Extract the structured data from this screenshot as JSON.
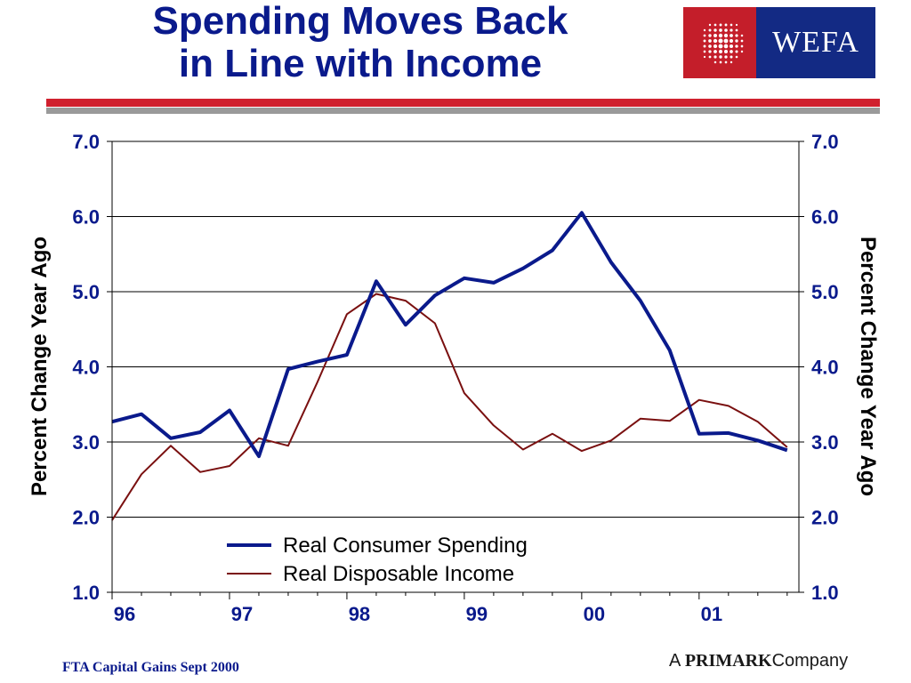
{
  "title": {
    "line1": "Spending Moves Back",
    "line2": "in Line with Income"
  },
  "logo": {
    "text": "WEFA",
    "primary_color": "#c41e2a",
    "secondary_color": "#132a84"
  },
  "footer": {
    "left": "FTA Capital Gains Sept 2000",
    "right_prefix": "A",
    "right_brand": "PRIMARK",
    "right_suffix": "Company"
  },
  "chart_data": {
    "type": "line",
    "title": "",
    "ylabel_left": "Percent Change Year Ago",
    "ylabel_right": "Percent Change Year Ago",
    "ylim": [
      1.0,
      7.0
    ],
    "yticks": [
      "1.0",
      "2.0",
      "3.0",
      "4.0",
      "5.0",
      "6.0",
      "7.0"
    ],
    "xlim": [
      1996.0,
      2001.85
    ],
    "xticks": [
      {
        "label": "96",
        "value": 1996
      },
      {
        "label": "97",
        "value": 1997
      },
      {
        "label": "98",
        "value": 1998
      },
      {
        "label": "99",
        "value": 1999
      },
      {
        "label": "00",
        "value": 2000
      },
      {
        "label": "01",
        "value": 2001
      }
    ],
    "grid": "horizontal",
    "legend": "bottom-center",
    "series": [
      {
        "name": "Real Consumer Spending",
        "color": "#0a1a8c",
        "x": [
          1996.0,
          1996.25,
          1996.5,
          1996.75,
          1997.0,
          1997.25,
          1997.5,
          1997.75,
          1998.0,
          1998.25,
          1998.5,
          1998.75,
          1999.0,
          1999.25,
          1999.5,
          1999.75,
          2000.0,
          2000.25,
          2000.5,
          2000.75,
          2001.0,
          2001.25,
          2001.5,
          2001.75
        ],
        "values": [
          3.27,
          3.37,
          3.05,
          3.13,
          3.42,
          2.81,
          3.97,
          4.07,
          4.16,
          5.14,
          4.56,
          4.95,
          5.18,
          5.12,
          5.31,
          5.55,
          6.05,
          5.39,
          4.88,
          4.22,
          3.11,
          3.12,
          3.02,
          2.89
        ]
      },
      {
        "name": "Real Disposable Income",
        "color": "#7a1010",
        "x": [
          1996.0,
          1996.25,
          1996.5,
          1996.75,
          1997.0,
          1997.25,
          1997.5,
          1997.75,
          1998.0,
          1998.25,
          1998.5,
          1998.75,
          1999.0,
          1999.25,
          1999.5,
          1999.75,
          2000.0,
          2000.25,
          2000.5,
          2000.75,
          2001.0,
          2001.25,
          2001.5,
          2001.75
        ],
        "values": [
          1.96,
          2.57,
          2.95,
          2.6,
          2.68,
          3.05,
          2.95,
          3.8,
          4.7,
          4.97,
          4.88,
          4.58,
          3.65,
          3.22,
          2.9,
          3.11,
          2.88,
          3.02,
          3.31,
          3.28,
          3.56,
          3.48,
          3.27,
          2.93
        ]
      }
    ]
  }
}
